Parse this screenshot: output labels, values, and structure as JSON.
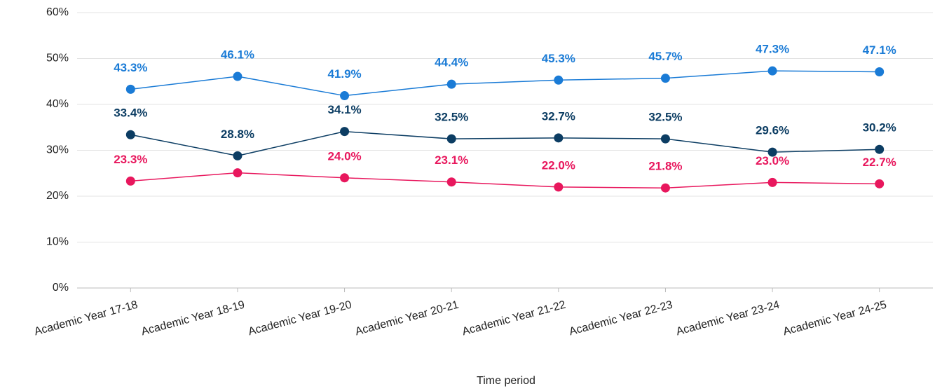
{
  "chart_data": {
    "type": "line",
    "x_label": "Time period",
    "categories": [
      "Academic Year 17-18",
      "Academic Year 18-19",
      "Academic Year 19-20",
      "Academic Year 20-21",
      "Academic Year 21-22",
      "Academic Year 22-23",
      "Academic Year 23-24",
      "Academic Year 24-25"
    ],
    "series": [
      {
        "color": "#1a7bd6",
        "values": [
          43.3,
          46.1,
          41.9,
          44.4,
          45.3,
          45.7,
          47.3,
          47.1
        ],
        "value_labels": [
          "43.3%",
          "46.1%",
          "41.9%",
          "44.4%",
          "45.3%",
          "45.7%",
          "47.3%",
          "47.1%"
        ]
      },
      {
        "color": "#0c3d63",
        "values": [
          33.4,
          28.8,
          34.1,
          32.5,
          32.7,
          32.5,
          29.6,
          30.2
        ],
        "value_labels": [
          "33.4%",
          "28.8%",
          "34.1%",
          "32.5%",
          "32.7%",
          "32.5%",
          "29.6%",
          "30.2%"
        ]
      },
      {
        "color": "#e8175d",
        "values": [
          23.3,
          25.1,
          24.0,
          23.1,
          22.0,
          21.8,
          23.0,
          22.7
        ],
        "value_labels": [
          "23.3%",
          null,
          "24.0%",
          "23.1%",
          "22.0%",
          "21.8%",
          "23.0%",
          "22.7%"
        ]
      }
    ],
    "ylim": [
      0,
      60
    ],
    "yticks": [
      {
        "value": 0,
        "label": "0%"
      },
      {
        "value": 10,
        "label": "10%"
      },
      {
        "value": 20,
        "label": "20%"
      },
      {
        "value": 30,
        "label": "30%"
      },
      {
        "value": 40,
        "label": "40%"
      },
      {
        "value": 50,
        "label": "50%"
      },
      {
        "value": 60,
        "label": "60%"
      }
    ],
    "grid": true
  }
}
